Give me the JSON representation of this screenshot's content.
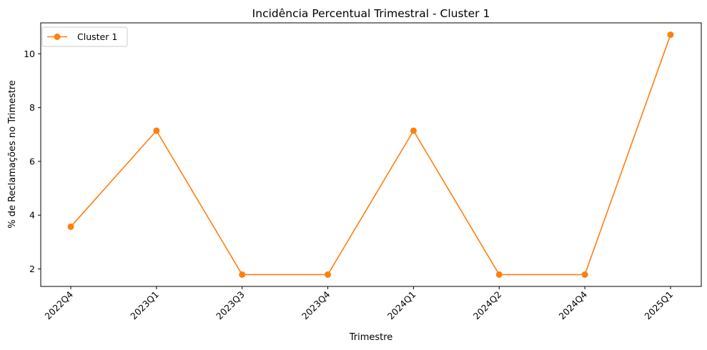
{
  "chart_data": {
    "type": "line",
    "title": "Incidência Percentual Trimestral - Cluster 1",
    "xlabel": "Trimestre",
    "ylabel": "% de Reclamações no Trimestre",
    "categories": [
      "2022Q4",
      "2023Q1",
      "2023Q3",
      "2023Q4",
      "2024Q1",
      "2024Q2",
      "2024Q4",
      "2025Q1"
    ],
    "series": [
      {
        "name": "Cluster 1",
        "values": [
          3.57,
          7.14,
          1.79,
          1.79,
          7.14,
          1.79,
          1.79,
          10.71
        ],
        "color": "#ff7f0e"
      }
    ],
    "ylim": [
      1.35,
      11.15
    ],
    "yticks": [
      2,
      4,
      6,
      8,
      10
    ],
    "x_tick_rotation_deg": 45,
    "legend": "top-left",
    "grid": false
  }
}
